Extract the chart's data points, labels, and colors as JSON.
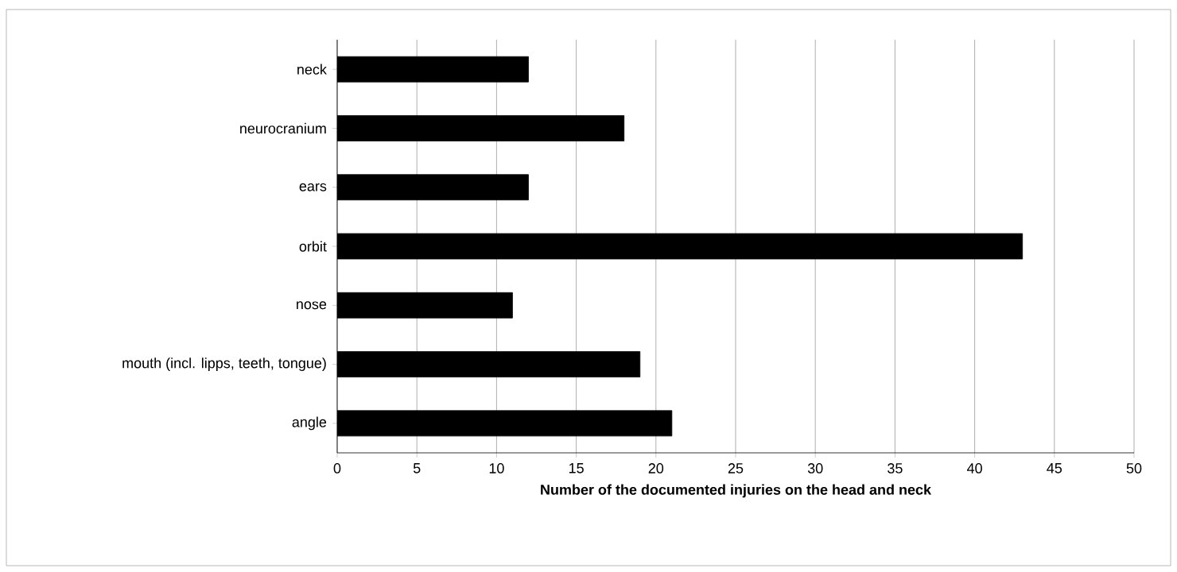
{
  "chart_data": {
    "type": "bar",
    "orientation": "horizontal",
    "xlabel": "Number of the documented injuries on the head and neck",
    "categories": [
      "neck",
      "neurocranium",
      "ears",
      "orbit",
      "nose",
      "mouth (incl. lipps, teeth, tongue)",
      "angle"
    ],
    "values": [
      12,
      18,
      12,
      43,
      11,
      19,
      21
    ],
    "color": "#000000",
    "xlim": [
      0,
      50
    ],
    "xticks": [
      0,
      5,
      10,
      15,
      20,
      25,
      30,
      35,
      40,
      45,
      50
    ],
    "grid": "x"
  }
}
